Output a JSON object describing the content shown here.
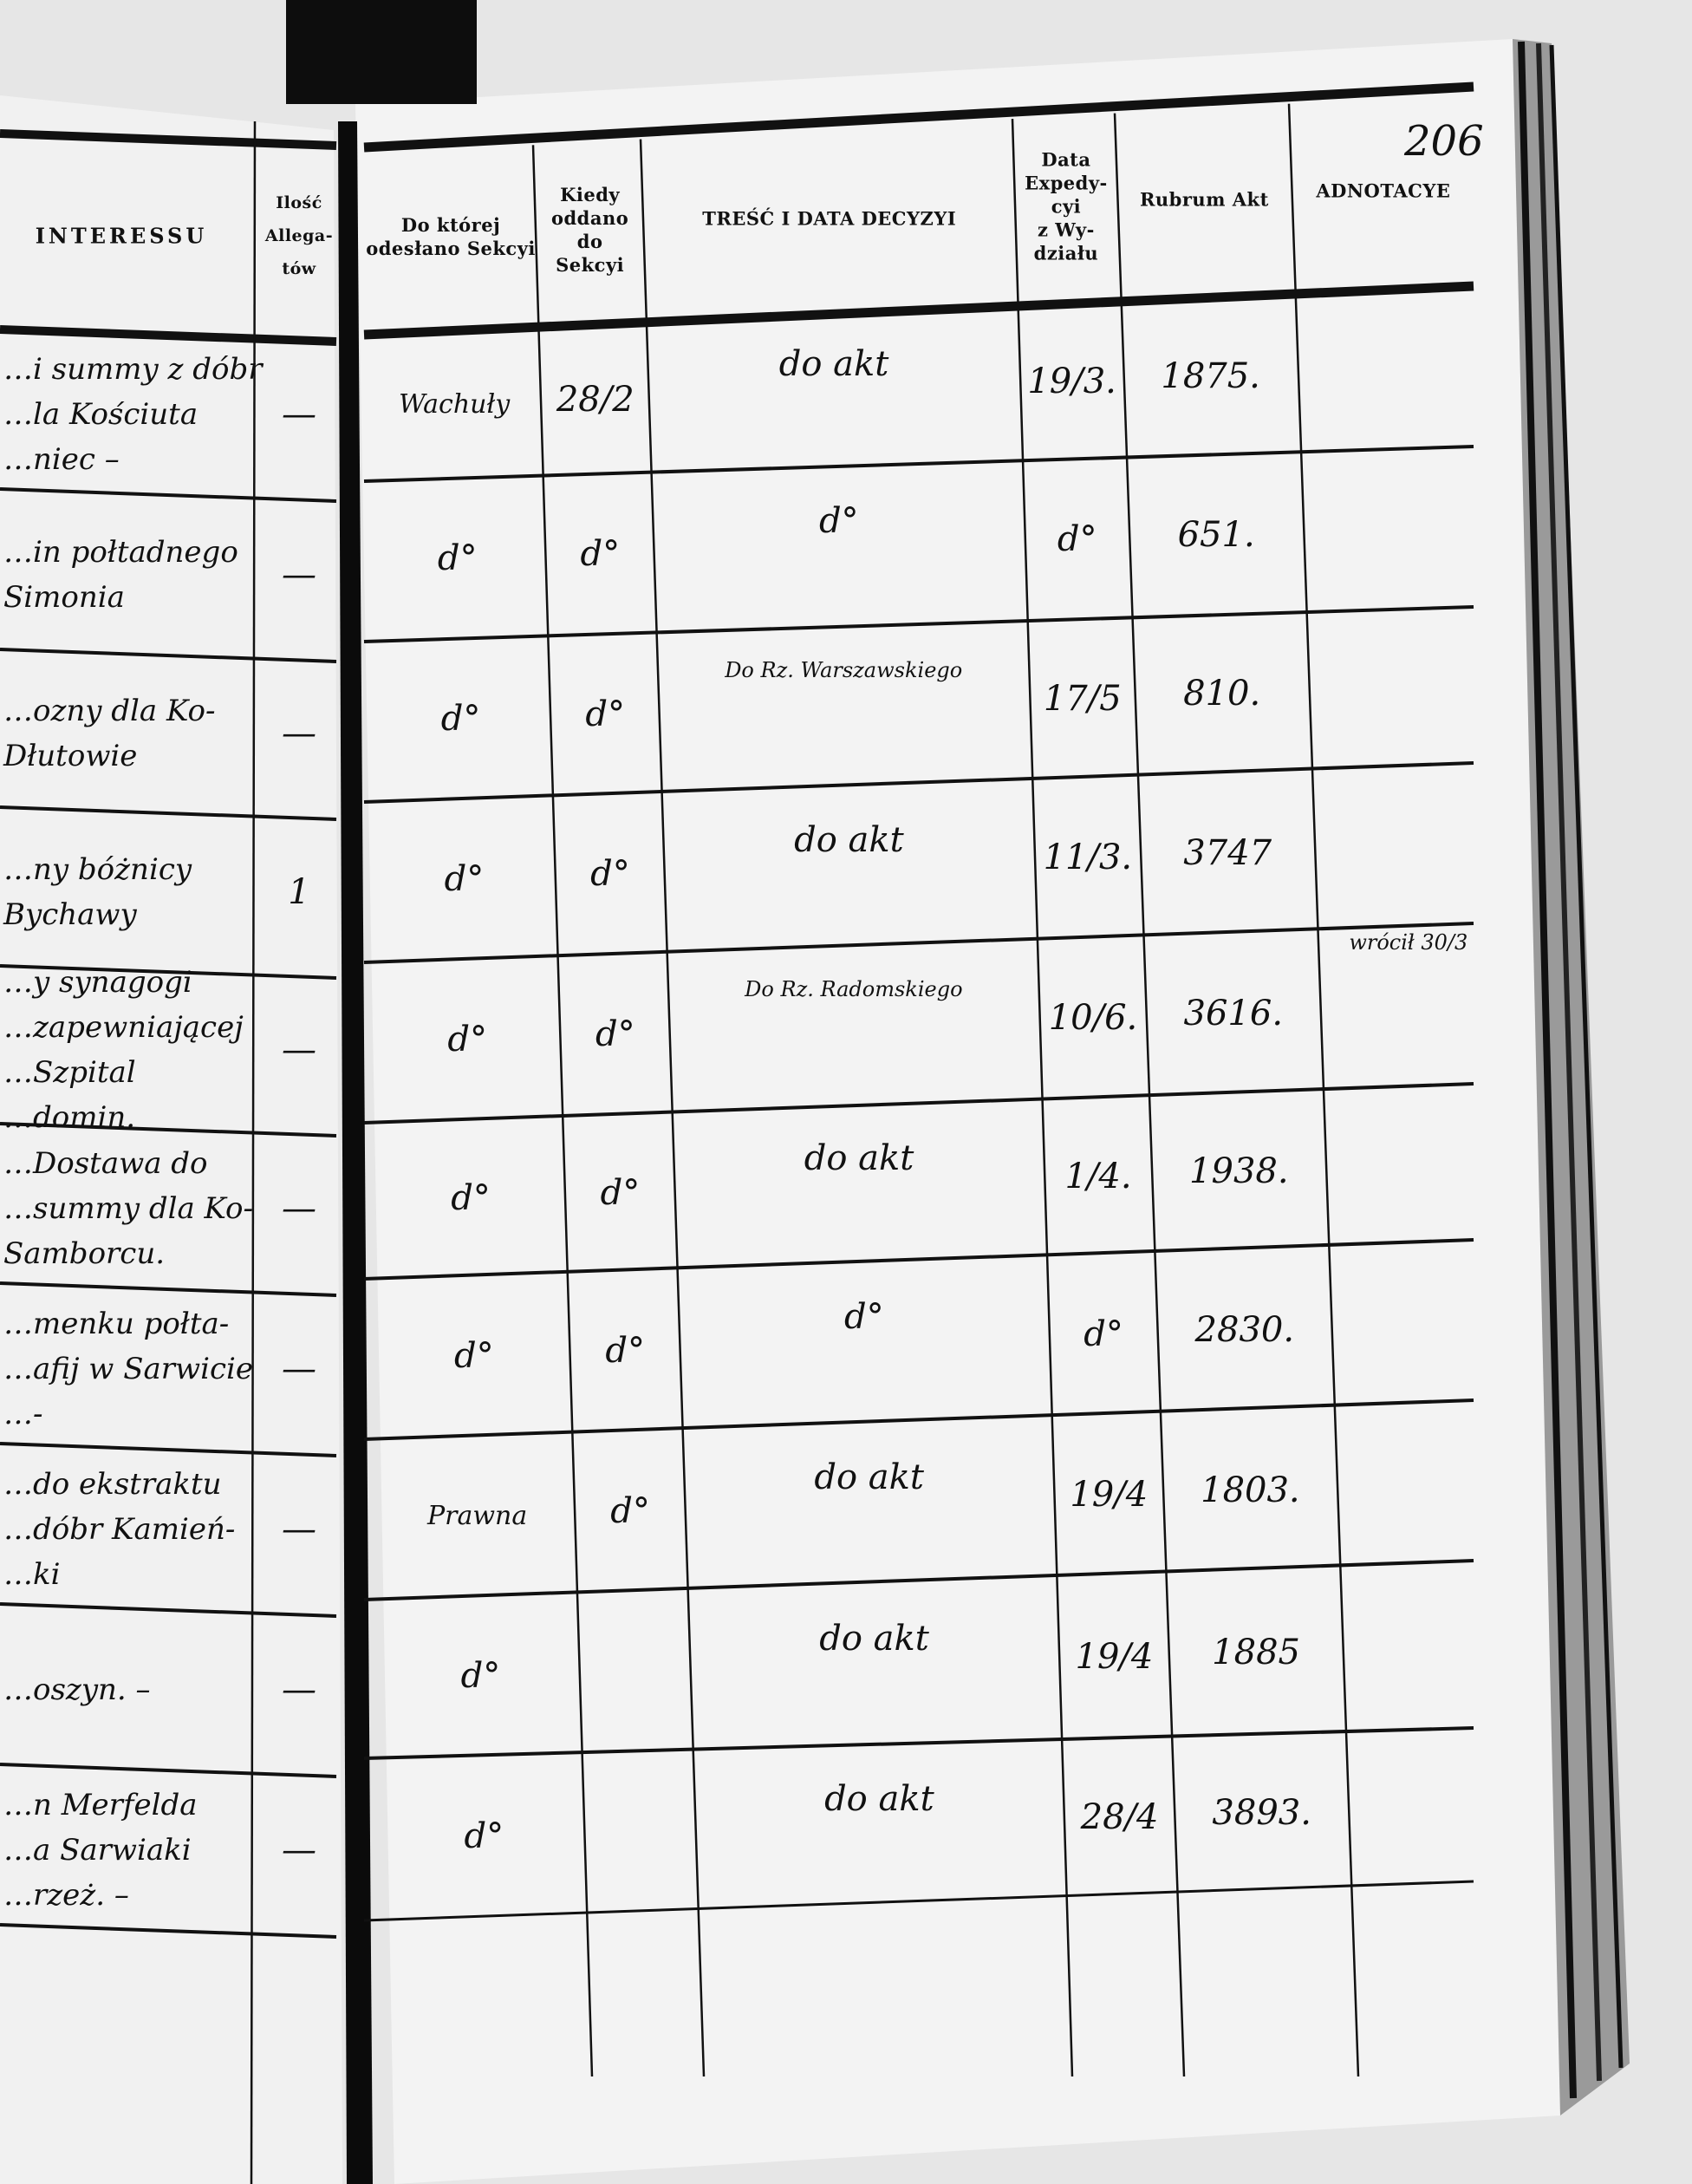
{
  "page_number": "206",
  "left_page": {
    "header_title": "INTERESSU",
    "header_count": "Ilość\nAllega-\ntów"
  },
  "right_page": {
    "headers": [
      "Do której\nodesłano Sekcyi",
      "Kiedy\noddano\ndo\nSekcyi",
      "TREŚĆ I DATA DECYZYI",
      "Data\nExpedy-\ncyi\nz Wy-\ndziału",
      "Rubrum Akt",
      "ADNOTACYE"
    ]
  },
  "rows": [
    {
      "interes": "…i summy z dóbr\n…la Kościuta\n…niec –",
      "ilosc": "—",
      "sekcja": "Wachuły",
      "kiedy": "28/2",
      "tresc": "do akt",
      "data_exp": "19/3.",
      "rubrum": "1875.",
      "adnotacye": ""
    },
    {
      "interes": "…in połtadnego\nSimonia",
      "ilosc": "—",
      "sekcja": "d°",
      "kiedy": "d°",
      "tresc": "d°",
      "data_exp": "d°",
      "rubrum": "651.",
      "adnotacye": ""
    },
    {
      "interes": "…ozny dla Ko-\nDłutowie",
      "ilosc": "—",
      "sekcja": "d°",
      "kiedy": "d°",
      "tresc": "Do Rz. Warszawskiego",
      "data_exp": "17/5",
      "rubrum": "810.",
      "adnotacye": ""
    },
    {
      "interes": "…ny bóżnicy\nBychawy",
      "ilosc": "1",
      "sekcja": "d°",
      "kiedy": "d°",
      "tresc": "do akt",
      "data_exp": "11/3.",
      "rubrum": "3747",
      "adnotacye": ""
    },
    {
      "interes": "…y synagogi\n…zapewniającej\n…Szpital\n…domin.",
      "ilosc": "—",
      "sekcja": "d°",
      "kiedy": "d°",
      "tresc": "Do Rz. Radomskiego",
      "data_exp": "10/6.",
      "rubrum": "3616.",
      "adnotacye": "wrócił 30/3"
    },
    {
      "interes": "…Dostawa do\n…summy dla Ko-\nSamborcu.",
      "ilosc": "—",
      "sekcja": "d°",
      "kiedy": "d°",
      "tresc": "do akt",
      "data_exp": "1/4.",
      "rubrum": "1938.",
      "adnotacye": ""
    },
    {
      "interes": "…menku połta-\n…afij w Sarwicie\n…-",
      "ilosc": "—",
      "sekcja": "d°",
      "kiedy": "d°",
      "tresc": "d°",
      "data_exp": "d°",
      "rubrum": "2830.",
      "adnotacye": ""
    },
    {
      "interes": "…do ekstraktu\n…dóbr Kamień-\n…ki",
      "ilosc": "—",
      "sekcja": "Prawna",
      "kiedy": "d°",
      "tresc": "do akt",
      "data_exp": "19/4",
      "rubrum": "1803.",
      "adnotacye": ""
    },
    {
      "interes": "…oszyn. –",
      "ilosc": "—",
      "sekcja": "d°",
      "kiedy": "",
      "tresc": "do akt",
      "data_exp": "19/4",
      "rubrum": "1885",
      "adnotacye": ""
    },
    {
      "interes": "…n Merfelda\n…a Sarwiaki\n…rzeż. –",
      "ilosc": "—",
      "sekcja": "d°",
      "kiedy": "",
      "tresc": "do akt",
      "data_exp": "28/4",
      "rubrum": "3893.",
      "adnotacye": ""
    }
  ]
}
